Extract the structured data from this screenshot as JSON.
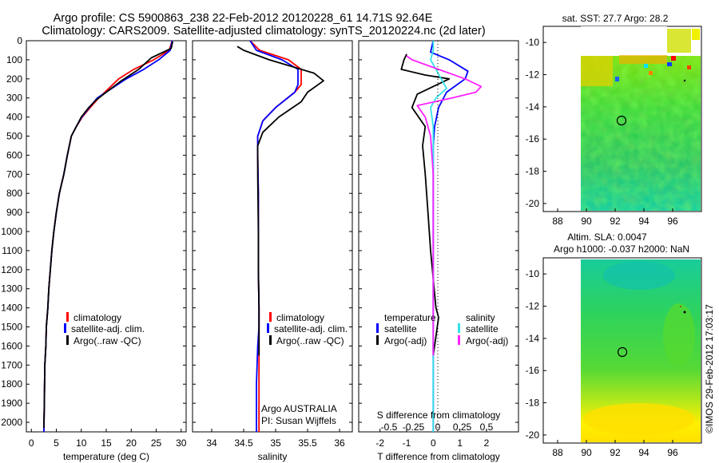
{
  "header": {
    "line1": "Argo profile: CS 5900863_238 22-Feb-2012 20120228_61 14.71S 92.64E",
    "line2": "Climatology: CARS2009. Satellite-adjusted climatology: synTS_20120224.nc (2d later)"
  },
  "side_label": "©IMOS 29-Feb-2012 17:03:17",
  "colors": {
    "climatology": "#ff0000",
    "satellite": "#0000ff",
    "argo": "#000000",
    "sal_satellite": "#33e0e8",
    "sal_argo": "#ff22ff"
  },
  "chart_data": [
    {
      "type": "line",
      "id": "temperature",
      "xlabel": "temperature (deg C)",
      "ylabel": "",
      "xlim": [
        -1,
        31
      ],
      "ylim": [
        2050,
        0
      ],
      "xticks": [
        "0",
        "5",
        "10",
        "15",
        "20",
        "25",
        "30"
      ],
      "xtick_values": [
        0,
        5,
        10,
        15,
        20,
        25,
        30
      ],
      "yticks": [
        "0",
        "100",
        "200",
        "300",
        "400",
        "500",
        "600",
        "700",
        "800",
        "900",
        "1000",
        "1100",
        "1200",
        "1300",
        "1400",
        "1500",
        "1600",
        "1700",
        "1800",
        "1900",
        "2000"
      ],
      "legend": [
        "climatology",
        "satellite-adj. clim.",
        "Argo(..raw -QC)"
      ],
      "series": [
        {
          "name": "climatology",
          "color": "#ff0000",
          "x": [
            28.2,
            27.6,
            24.5,
            20.5,
            17.5,
            13.5,
            11.8,
            10.2,
            9.0,
            8.0,
            7.2,
            6.5,
            5.6,
            5.0,
            4.5,
            4.1,
            3.8,
            3.5,
            3.3,
            3.0,
            2.9,
            2.7,
            2.6,
            2.5
          ],
          "y": [
            0,
            50,
            100,
            150,
            200,
            300,
            350,
            400,
            450,
            500,
            600,
            700,
            800,
            900,
            1000,
            1100,
            1200,
            1300,
            1400,
            1500,
            1600,
            1700,
            1900,
            2050
          ]
        },
        {
          "name": "satellite-adj. clim.",
          "color": "#0000ff",
          "x": [
            28.2,
            27.8,
            25.5,
            22.5,
            19.0,
            13.2,
            11.6,
            10.1,
            9.0,
            8.0,
            7.2,
            6.5,
            5.6,
            5.0,
            4.5,
            4.1,
            3.8,
            3.5,
            3.3,
            3.0,
            2.9,
            2.7,
            2.6,
            2.5
          ],
          "y": [
            0,
            50,
            100,
            150,
            200,
            300,
            350,
            400,
            450,
            500,
            600,
            700,
            800,
            900,
            1000,
            1100,
            1200,
            1300,
            1400,
            1500,
            1600,
            1700,
            1900,
            2050
          ]
        },
        {
          "name": "Argo(..raw -QC)",
          "color": "#000000",
          "x": [
            28.3,
            28.0,
            24.0,
            21.5,
            18.0,
            13.0,
            11.5,
            10.0,
            9.0,
            8.0,
            7.2,
            6.5,
            5.6,
            5.0,
            4.5,
            4.1,
            3.8,
            3.5,
            3.3,
            3.0,
            2.9,
            2.7,
            2.6,
            2.5
          ],
          "y": [
            5,
            40,
            90,
            150,
            210,
            310,
            350,
            400,
            450,
            500,
            600,
            700,
            800,
            900,
            1000,
            1100,
            1200,
            1300,
            1400,
            1500,
            1600,
            1700,
            1900,
            2030
          ]
        }
      ]
    },
    {
      "type": "line",
      "id": "salinity",
      "xlabel": "salinity",
      "xlim": [
        33.7,
        36.2
      ],
      "ylim": [
        2050,
        0
      ],
      "xticks": [
        "34",
        "34.5",
        "35",
        "35.5",
        "36"
      ],
      "xtick_values": [
        34,
        34.5,
        35,
        35.5,
        36
      ],
      "legend": [
        "climatology",
        "satellite-adj. clim.",
        "Argo(..raw -QC)"
      ],
      "annotation": [
        "Argo AUSTRALIA",
        "PI: Susan Wijffels"
      ],
      "series": [
        {
          "name": "climatology",
          "color": "#ff0000",
          "x": [
            34.6,
            34.75,
            35.2,
            35.4,
            35.4,
            35.3,
            35.0,
            34.8,
            34.72,
            34.72,
            34.73,
            34.73,
            34.73,
            34.74,
            34.74,
            34.74,
            34.74,
            34.74,
            34.74
          ],
          "y": [
            0,
            50,
            100,
            150,
            230,
            270,
            350,
            420,
            500,
            600,
            800,
            1000,
            1200,
            1400,
            1500,
            1600,
            1800,
            2000,
            2050
          ]
        },
        {
          "name": "satellite-adj. clim.",
          "color": "#0000ff",
          "x": [
            34.6,
            34.7,
            35.1,
            35.35,
            35.35,
            35.3,
            35.0,
            34.8,
            34.72,
            34.72,
            34.73,
            34.73,
            34.73,
            34.74,
            34.74,
            34.72,
            34.7,
            34.7,
            34.7
          ],
          "y": [
            0,
            50,
            100,
            150,
            230,
            270,
            350,
            420,
            500,
            600,
            800,
            1000,
            1200,
            1400,
            1500,
            1600,
            1800,
            2000,
            2050
          ]
        },
        {
          "name": "Argo(..raw -QC)",
          "color": "#000000",
          "x": [
            34.4,
            34.5,
            34.9,
            35.6,
            35.75,
            35.5,
            35.4,
            35.05,
            34.8,
            34.72,
            34.72,
            34.73,
            34.73,
            34.74,
            34.74,
            34.74,
            34.74
          ],
          "y": [
            30,
            50,
            100,
            170,
            210,
            270,
            320,
            400,
            480,
            550,
            700,
            1000,
            1200,
            1400,
            1500,
            1600,
            1650
          ]
        }
      ]
    },
    {
      "type": "line",
      "id": "difference",
      "xlabel": "T difference from climatology",
      "top_label": "S difference from climatology",
      "xlim": [
        -2.8,
        3.2
      ],
      "ylim": [
        2050,
        0
      ],
      "xticks": [
        "-2",
        "-1",
        "0",
        "1",
        "2"
      ],
      "xtick_values": [
        -2,
        -1,
        0,
        1,
        2
      ],
      "sticks": [
        "-0.5",
        "-0.25",
        "0",
        "0.25",
        "0.5"
      ],
      "stick_values": [
        -0.5,
        -0.25,
        0,
        0.25,
        0.5
      ],
      "legend_temperature": [
        "temperature",
        "satellite",
        "Argo(-adj)"
      ],
      "legend_salinity": [
        "salinity",
        "satellite",
        "Argo(-adj)"
      ],
      "series": [
        {
          "name": "T satellite",
          "color": "#0000ff",
          "x": [
            0.0,
            -0.1,
            0.6,
            1.3,
            1.2,
            0.5,
            0.2,
            0.05,
            0.0,
            0.0,
            0.0,
            0.0,
            0.0,
            0.0
          ],
          "y": [
            0,
            60,
            100,
            160,
            200,
            270,
            350,
            450,
            550,
            800,
            1200,
            1500,
            1800,
            2050
          ]
        },
        {
          "name": "T Argo(-adj)",
          "color": "#000000",
          "x": [
            -1.0,
            -1.1,
            -1.2,
            -0.3,
            0.6,
            -0.6,
            -0.8,
            -0.3,
            -0.4,
            -0.3,
            -0.2,
            -0.1,
            0.1,
            0.2,
            0.1,
            0.0
          ],
          "y": [
            70,
            100,
            150,
            180,
            200,
            280,
            350,
            450,
            550,
            700,
            900,
            1100,
            1400,
            1450,
            1550,
            1650
          ]
        },
        {
          "name": "S satellite",
          "color": "#33e0e8",
          "x": [
            0.0,
            0.0,
            -0.1,
            0.1,
            0.3,
            0.5,
            0.1,
            -0.1,
            0.0,
            0.0,
            0.0,
            0.0,
            0.0,
            0.0,
            0.0
          ],
          "y": [
            0,
            50,
            100,
            150,
            200,
            250,
            300,
            350,
            450,
            550,
            800,
            1200,
            1500,
            1800,
            2050
          ]
        },
        {
          "name": "S Argo(-adj)",
          "color": "#ff22ff",
          "x": [
            -1.0,
            -0.8,
            0.2,
            1.2,
            1.8,
            1.6,
            0.7,
            -0.6,
            -0.3,
            -0.1,
            0.0,
            0.0,
            0.0,
            0.0
          ],
          "y": [
            80,
            100,
            150,
            200,
            240,
            270,
            300,
            340,
            400,
            500,
            700,
            1000,
            1400,
            1650
          ]
        }
      ]
    },
    {
      "type": "heatmap",
      "id": "sst_map",
      "title": "sat. SST: 27.7  Argo: 28.2",
      "xticks": [
        "88",
        "90",
        "92",
        "94",
        "96"
      ],
      "yticks": [
        "-10",
        "-12",
        "-14",
        "-16",
        "-18",
        "-20"
      ],
      "xlim": [
        87,
        98
      ],
      "ylim": [
        -20.5,
        -9
      ]
    },
    {
      "type": "heatmap",
      "id": "sla_map",
      "title_line1": "Altim. SLA: 0.0047",
      "title_line2": "Argo h1000: -0.037 h2000: NaN",
      "xticks": [
        "88",
        "90",
        "92",
        "94",
        "96"
      ],
      "yticks": [
        "-10",
        "-12",
        "-14",
        "-16",
        "-18",
        "-20"
      ],
      "xlim": [
        87,
        98
      ],
      "ylim": [
        -20.5,
        -9
      ]
    }
  ]
}
